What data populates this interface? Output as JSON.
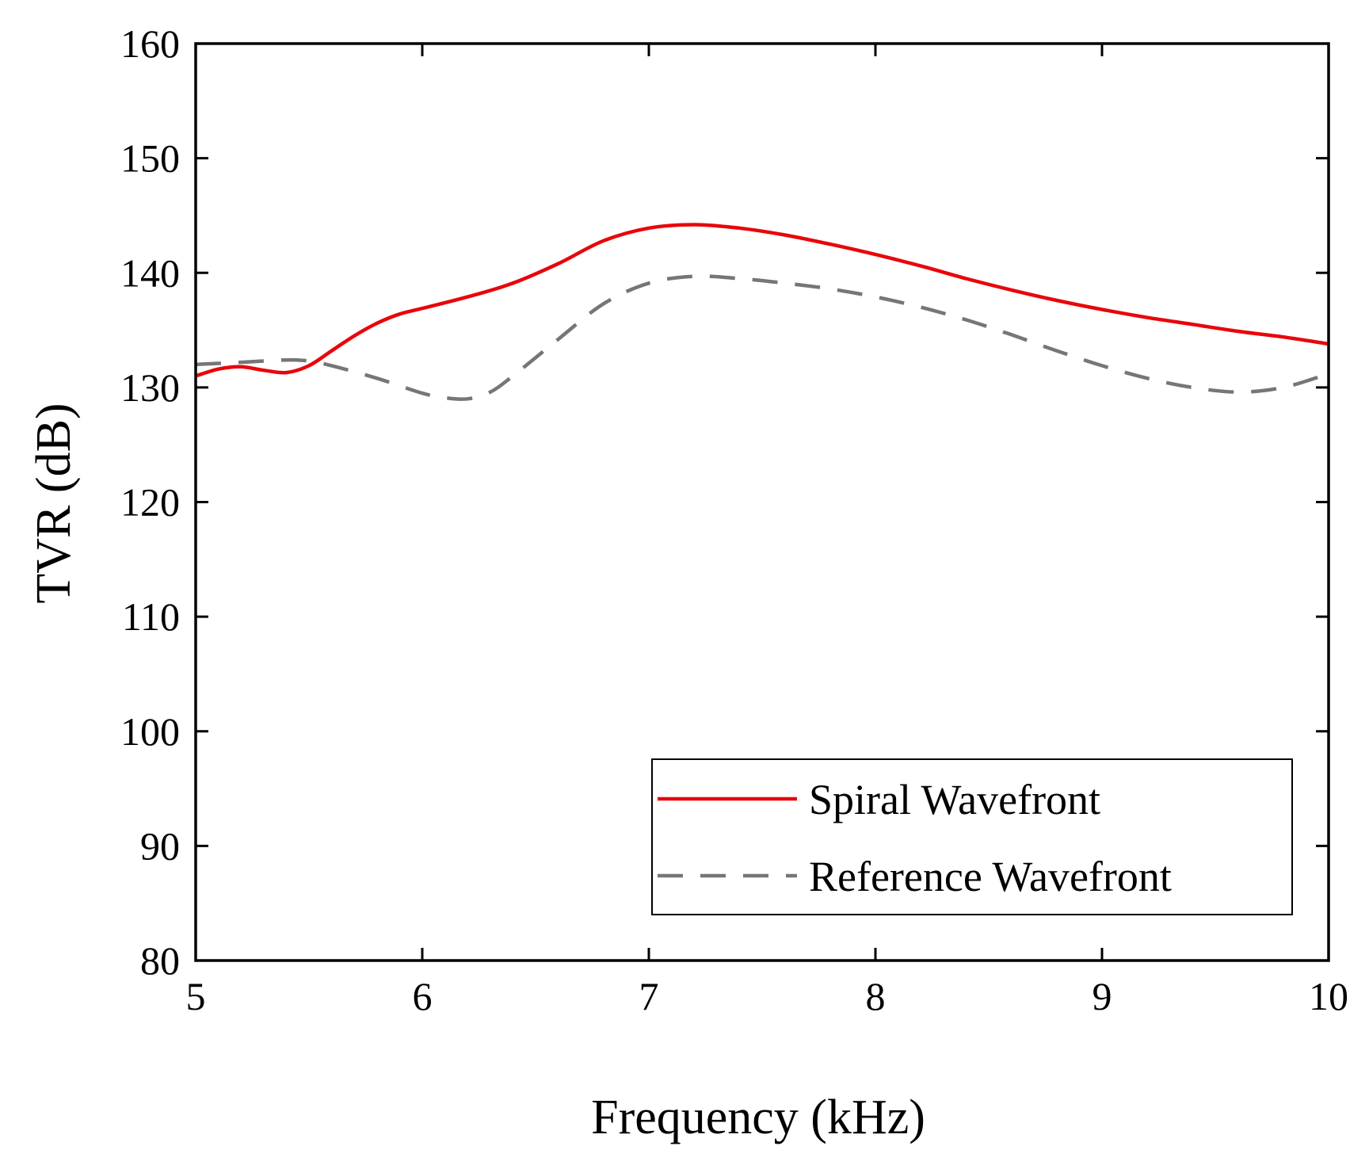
{
  "chart_data": {
    "type": "line",
    "title": "",
    "xlabel": "Frequency (kHz)",
    "ylabel": "TVR (dB)",
    "xlim": [
      5,
      10
    ],
    "ylim": [
      80,
      160
    ],
    "xticks": [
      5,
      6,
      7,
      8,
      9,
      10
    ],
    "yticks": [
      80,
      90,
      100,
      110,
      120,
      130,
      140,
      150,
      160
    ],
    "grid": false,
    "legend_position": "bottom-right",
    "series": [
      {
        "name": "Spiral Wavefront",
        "color": "#e8060b",
        "style": "solid",
        "x": [
          5.0,
          5.1,
          5.2,
          5.3,
          5.4,
          5.5,
          5.6,
          5.7,
          5.8,
          5.9,
          6.0,
          6.2,
          6.4,
          6.6,
          6.8,
          7.0,
          7.2,
          7.4,
          7.6,
          7.8,
          8.0,
          8.2,
          8.4,
          8.6,
          8.8,
          9.0,
          9.2,
          9.4,
          9.6,
          9.8,
          10.0
        ],
        "y": [
          131.0,
          131.6,
          131.8,
          131.5,
          131.3,
          131.9,
          133.2,
          134.5,
          135.6,
          136.4,
          136.9,
          137.9,
          139.1,
          140.8,
          142.8,
          143.9,
          144.2,
          143.9,
          143.3,
          142.5,
          141.6,
          140.6,
          139.5,
          138.5,
          137.6,
          136.8,
          136.1,
          135.5,
          134.9,
          134.4,
          133.8
        ]
      },
      {
        "name": "Reference Wavefront",
        "color": "#767676",
        "style": "dashed",
        "x": [
          5.0,
          5.2,
          5.4,
          5.5,
          5.6,
          5.8,
          6.0,
          6.1,
          6.2,
          6.3,
          6.4,
          6.6,
          6.8,
          7.0,
          7.2,
          7.4,
          7.6,
          7.8,
          8.0,
          8.2,
          8.4,
          8.6,
          8.8,
          9.0,
          9.2,
          9.4,
          9.6,
          9.8,
          10.0
        ],
        "y": [
          132.0,
          132.2,
          132.4,
          132.3,
          131.9,
          130.8,
          129.5,
          129.1,
          129.0,
          129.6,
          131.0,
          134.2,
          137.3,
          139.1,
          139.7,
          139.5,
          139.1,
          138.6,
          137.9,
          137.0,
          135.9,
          134.6,
          133.2,
          131.9,
          130.8,
          130.0,
          129.6,
          130.0,
          131.2
        ]
      }
    ]
  }
}
